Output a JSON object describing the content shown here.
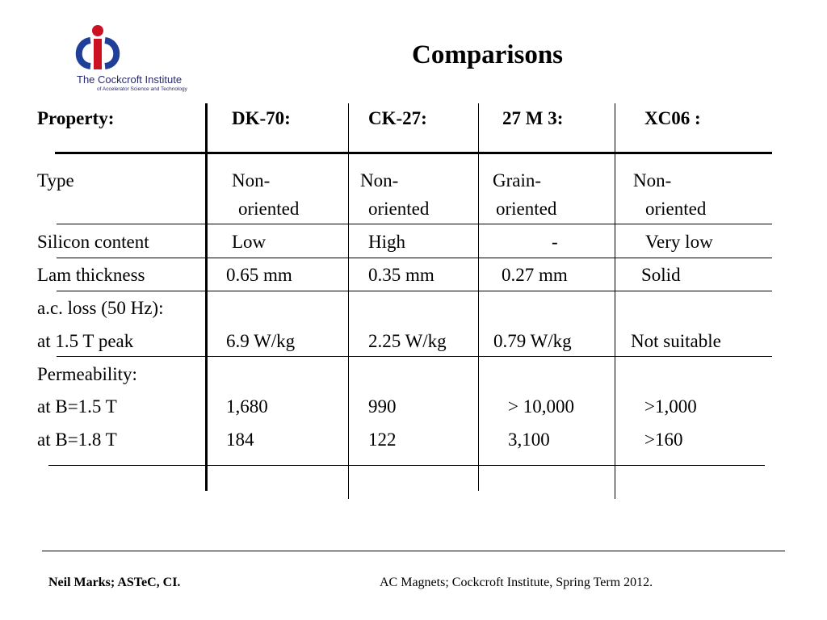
{
  "slide": {
    "title": "Comparisons",
    "logo": {
      "line1": "The Cockcroft Institute",
      "line2": "of Accelerator Science and Technology",
      "accent_blue": "#1f3f99",
      "accent_red": "#cc1122"
    }
  },
  "table": {
    "headers": [
      "Property:",
      "DK-70:",
      "CK-27:",
      "27 M 3:",
      "XC06 :"
    ],
    "rows": [
      {
        "label": "Type",
        "c1a": "Non-",
        "c1b": "oriented",
        "c2a": "Non-",
        "c2b": "oriented",
        "c3a": "Grain-",
        "c3b": "oriented",
        "c4a": "Non-",
        "c4b": "oriented"
      },
      {
        "label": "Silicon content",
        "c1": "Low",
        "c2": "High",
        "c3": "-",
        "c4": "Very low"
      },
      {
        "label": "Lam thickness",
        "c1": "0.65 mm",
        "c2": "0.35 mm",
        "c3": "0.27 mm",
        "c4": "Solid"
      },
      {
        "label": "a.c. loss (50 Hz):"
      },
      {
        "label": "at 1.5  T peak",
        "c1": "6.9 W/kg",
        "c2": "2.25 W/kg",
        "c3": "0.79 W/kg",
        "c4": "Not suitable"
      },
      {
        "label": "Permeability:"
      },
      {
        "label": "at B=1.5 T",
        "c1": "1,680",
        "c2": "990",
        "c3": "> 10,000",
        "c4": ">1,000"
      },
      {
        "label": "at B=1.8 T",
        "c1": "184",
        "c2": "122",
        "c3": "3,100",
        "c4": ">160"
      }
    ]
  },
  "footer": {
    "left": "Neil Marks; ASTeC, CI.",
    "right": "AC Magnets; Cockcroft Institute, Spring Term 2012."
  }
}
